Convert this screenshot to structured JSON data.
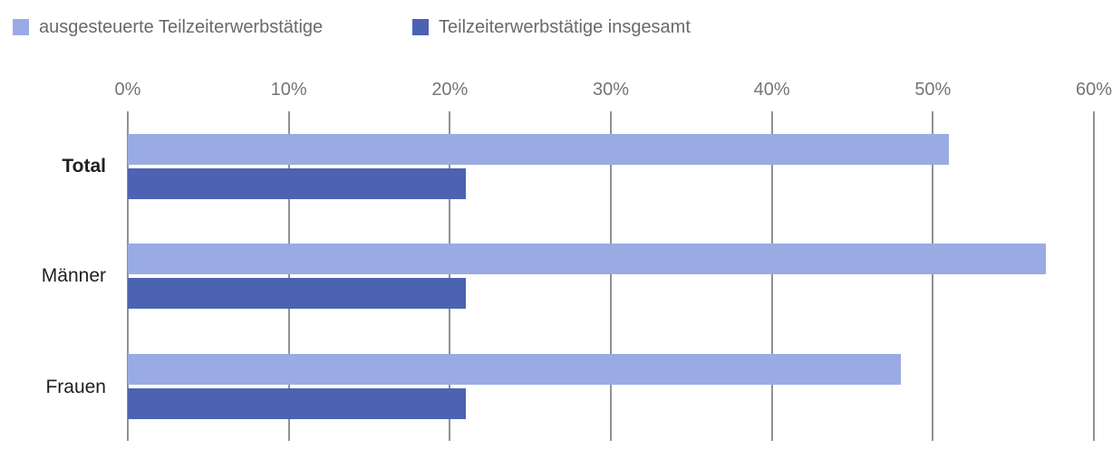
{
  "legend": {
    "items": [
      {
        "label": "ausgesteuerte Teilzeiterwerbstätige",
        "color": "#9aabe3"
      },
      {
        "label": "Teilzeiterwerbstätige insgesamt",
        "color": "#4c63b2"
      }
    ]
  },
  "chart_data": {
    "type": "bar",
    "orientation": "horizontal",
    "title": "",
    "xlabel": "",
    "ylabel": "",
    "categories": [
      "Total",
      "Männer",
      "Frauen"
    ],
    "series": [
      {
        "name": "ausgesteuerte Teilzeiterwerbstätige",
        "color": "#9aabe3",
        "values": [
          51,
          57,
          48
        ]
      },
      {
        "name": "Teilzeiterwerbstätige insgesamt",
        "color": "#4c63b2",
        "values": [
          21,
          21,
          21
        ]
      }
    ],
    "x_tick_labels": [
      "0%",
      "10%",
      "20%",
      "30%",
      "40%",
      "50%",
      "60%"
    ],
    "xlim": [
      0,
      60
    ],
    "grid": true,
    "legend_position": "top",
    "bold_categories": [
      "Total"
    ]
  },
  "colors": {
    "background": "#ffffff",
    "gridline": "#919191",
    "tick_label": "#757575",
    "legend_text": "#696969",
    "category_text": "#1f1f1f"
  }
}
